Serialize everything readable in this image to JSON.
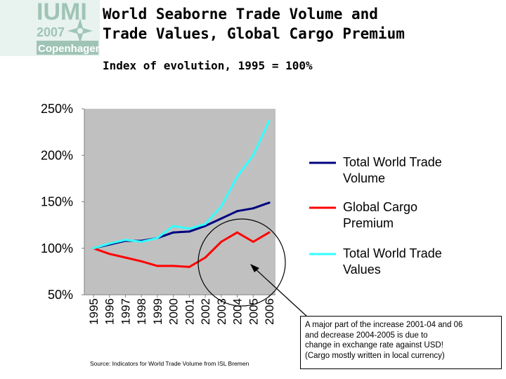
{
  "logo": {
    "line1": "IUMI",
    "year": "2007",
    "city": "Copenhagen"
  },
  "header": {
    "title_line1": "World Seaborne Trade Volume and",
    "title_line2": "Trade Values, Global Cargo Premium",
    "subtitle": "Index of evolution, 1995 = 100%"
  },
  "source": "Source: Indicators for World Trade Volume from ISL Bremen",
  "annotation": {
    "lines": [
      "A major part of the increase 2001-04 and 06",
      "and decrease 2004-2005 is due to",
      "change in exchange rate against USD!",
      "(Cargo mostly written in local currency)"
    ]
  },
  "colors": {
    "plot_bg": "#c0c0c0",
    "volume": "#000080",
    "premium": "#ff0000",
    "values": "#33ffff"
  },
  "chart_data": {
    "type": "line",
    "x": [
      "1995",
      "1996",
      "1997",
      "1998",
      "1999",
      "2000",
      "2001",
      "2002",
      "2003",
      "2004",
      "2005",
      "2006"
    ],
    "ylim": [
      50,
      250
    ],
    "yticks": [
      50,
      100,
      150,
      200,
      250
    ],
    "ytick_labels": [
      "50%",
      "100%",
      "150%",
      "200%",
      "250%"
    ],
    "grid": false,
    "legend_position": "right",
    "series": [
      {
        "name": "Total World Trade Volume",
        "legend_lines": [
          "Total World Trade",
          "Volume"
        ],
        "color": "#000080",
        "values": [
          100,
          104,
          108,
          108,
          111,
          117,
          118,
          124,
          132,
          140,
          143,
          149
        ]
      },
      {
        "name": "Global Cargo Premium",
        "legend_lines": [
          "Global Cargo",
          "Premium"
        ],
        "color": "#ff0000",
        "values": [
          100,
          94,
          90,
          86,
          81,
          81,
          80,
          90,
          107,
          117,
          107,
          117
        ]
      },
      {
        "name": "Total World Trade Values",
        "legend_lines": [
          "Total World Trade",
          "Values"
        ],
        "color": "#33ffff",
        "values": [
          100,
          105,
          109,
          107,
          111,
          124,
          121,
          126,
          145,
          177,
          200,
          237
        ]
      }
    ]
  }
}
